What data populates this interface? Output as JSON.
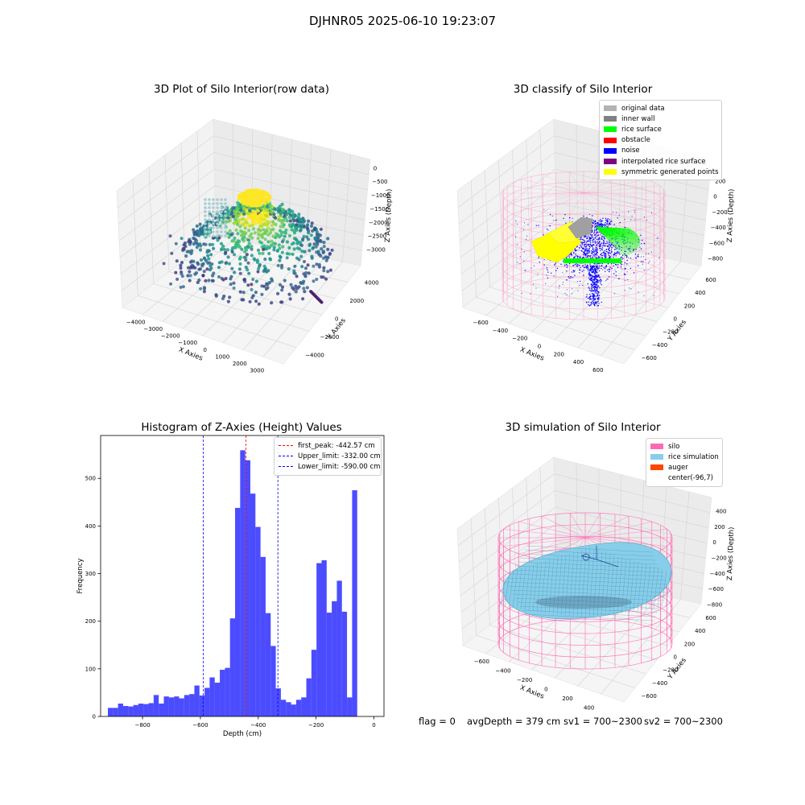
{
  "figure": {
    "title": "DJHNR05 2025-06-10 19:23:07"
  },
  "chart_data": [
    {
      "id": "raw",
      "type": "scatter",
      "projection": "3d",
      "title": "3D Plot of Silo Interior(row data)",
      "xlabel": "X Axies",
      "ylabel": "Y Axies",
      "zlabel": "Z Axies (Depth)",
      "xticks": [
        "−4000",
        "−3000",
        "−2000",
        "−1000",
        "0",
        "1000",
        "2000",
        "3000"
      ],
      "yticks": [
        "−4000",
        "−2000",
        "0",
        "2000",
        "4000"
      ],
      "zticks": [
        "0",
        "−500",
        "−1000",
        "−1500",
        "−2000",
        "−2500",
        "−3000"
      ],
      "xlim": [
        -4300,
        3500
      ],
      "ylim": [
        -4500,
        4500
      ],
      "zlim": [
        -3600,
        200
      ],
      "colormap": "viridis",
      "grid": true
    },
    {
      "id": "classify",
      "type": "scatter",
      "projection": "3d",
      "title": "3D classify of Silo Interior",
      "xlabel": "X Axies",
      "ylabel": "Y Axies",
      "zlabel": "Z Axies (Depth)",
      "xticks": [
        "−600",
        "−400",
        "−200",
        "0",
        "200",
        "400",
        "600"
      ],
      "yticks": [
        "−600",
        "−400",
        "−200",
        "0",
        "200",
        "400",
        "600"
      ],
      "zticks": [
        "200",
        "0",
        "−200",
        "−400",
        "−600",
        "−800"
      ],
      "zticks_hidden_top": "400",
      "legend_loc": "upper right",
      "legend": [
        {
          "label": "original data",
          "color": "#b3b3b3"
        },
        {
          "label": "inner wall",
          "color": "#808080"
        },
        {
          "label": "rice surface",
          "color": "#00ff00"
        },
        {
          "label": "obstacle",
          "color": "#ff0000"
        },
        {
          "label": "noise",
          "color": "#0000ff"
        },
        {
          "label": "interpolated rice surface",
          "color": "#800080"
        },
        {
          "label": "symmetric generated points",
          "color": "#ffff00"
        }
      ],
      "wall_color": "#ff69b4",
      "grid": true
    },
    {
      "id": "hist",
      "type": "bar",
      "title": "Histogram of Z-Axies (Height) Values",
      "xlabel": "Depth (cm)",
      "ylabel": "Frequency",
      "xlim": [
        -945,
        35
      ],
      "ylim": [
        0,
        590
      ],
      "xticks": [
        -800,
        -600,
        -400,
        -200,
        0
      ],
      "xtick_labels": [
        "−800",
        "−600",
        "−400",
        "−200",
        "0"
      ],
      "yticks": [
        0,
        100,
        200,
        300,
        400,
        500
      ],
      "bin_start": -920,
      "bin_width": 17.6,
      "values": [
        18,
        18,
        27,
        22,
        21,
        24,
        27,
        26,
        28,
        45,
        27,
        42,
        40,
        42,
        38,
        45,
        47,
        65,
        44,
        60,
        82,
        71,
        98,
        102,
        206,
        438,
        559,
        538,
        468,
        398,
        335,
        217,
        148,
        59,
        35,
        30,
        25,
        35,
        40,
        80,
        140,
        322,
        328,
        218,
        242,
        285,
        220,
        40,
        475
      ],
      "bar_color": "#0000ff",
      "vlines": [
        {
          "label": "first_peak: -442.57 cm",
          "x": -442.57,
          "color": "#ff0000"
        },
        {
          "label": "Upper_limit: -332.00 cm",
          "x": -332.0,
          "color": "#0000ff"
        },
        {
          "label": "Lower_limit: -590.00 cm",
          "x": -590.0,
          "color": "#0000ff"
        }
      ],
      "legend_loc": "upper right"
    },
    {
      "id": "sim",
      "type": "surface",
      "projection": "3d",
      "title": "3D simulation of Silo Interior",
      "xlabel": "X Axies",
      "ylabel": "Y Axies",
      "zlabel": "Z Axies (Depth)",
      "xticks": [
        "−600",
        "−400",
        "−200",
        "0",
        "200",
        "400"
      ],
      "yticks": [
        "−600",
        "−400",
        "−200",
        "0",
        "200",
        "400",
        "600"
      ],
      "zticks": [
        "400",
        "200",
        "0",
        "−200",
        "−400",
        "−600",
        "−800"
      ],
      "legend": [
        {
          "label": "silo",
          "color": "#ff69b4"
        },
        {
          "label": "rice simulation",
          "color": "#87ceeb"
        },
        {
          "label": "auger",
          "color": "#ff4500"
        },
        {
          "label": "center(-96,7)",
          "color": "none"
        }
      ],
      "legend_loc": "upper right",
      "grid": true
    }
  ],
  "status": {
    "flag": "flag = 0",
    "avg_depth": "avgDepth = 379 cm",
    "sv1": "sv1 = 700~2300",
    "sv2": "sv2 = 700~2300"
  }
}
